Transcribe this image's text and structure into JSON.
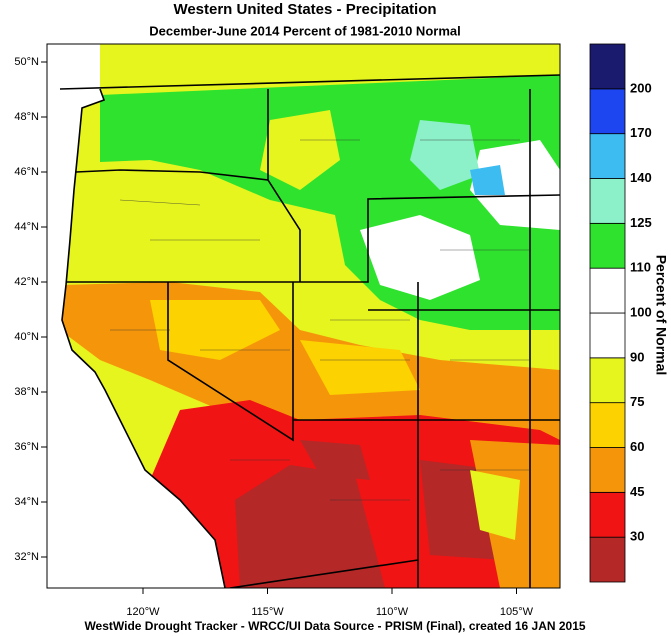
{
  "title": "Western United States - Precipitation",
  "subtitle": "December-June 2014  Percent of 1981-2010 Normal",
  "footer": "WestWide Drought Tracker - WRCC/UI  Data Source - PRISM (Final), created 16 JAN 2015",
  "lat_labels": [
    "50°N",
    "48°N",
    "46°N",
    "44°N",
    "42°N",
    "40°N",
    "38°N",
    "36°N",
    "34°N",
    "32°N"
  ],
  "lon_labels": [
    "120°W",
    "115°W",
    "110°W",
    "105°W"
  ],
  "colorbar": {
    "title": "Percent of Normal",
    "labels": [
      30,
      45,
      60,
      75,
      90,
      100,
      110,
      125,
      140,
      170,
      200
    ],
    "colors": [
      "#b42828",
      "#f01414",
      "#f5960a",
      "#fcd200",
      "#e6f51e",
      "#ffffff",
      "#ffffff",
      "#2ee22e",
      "#8cf0c8",
      "#3cbcf0",
      "#1e46f0",
      "#1a1a6e"
    ]
  }
}
